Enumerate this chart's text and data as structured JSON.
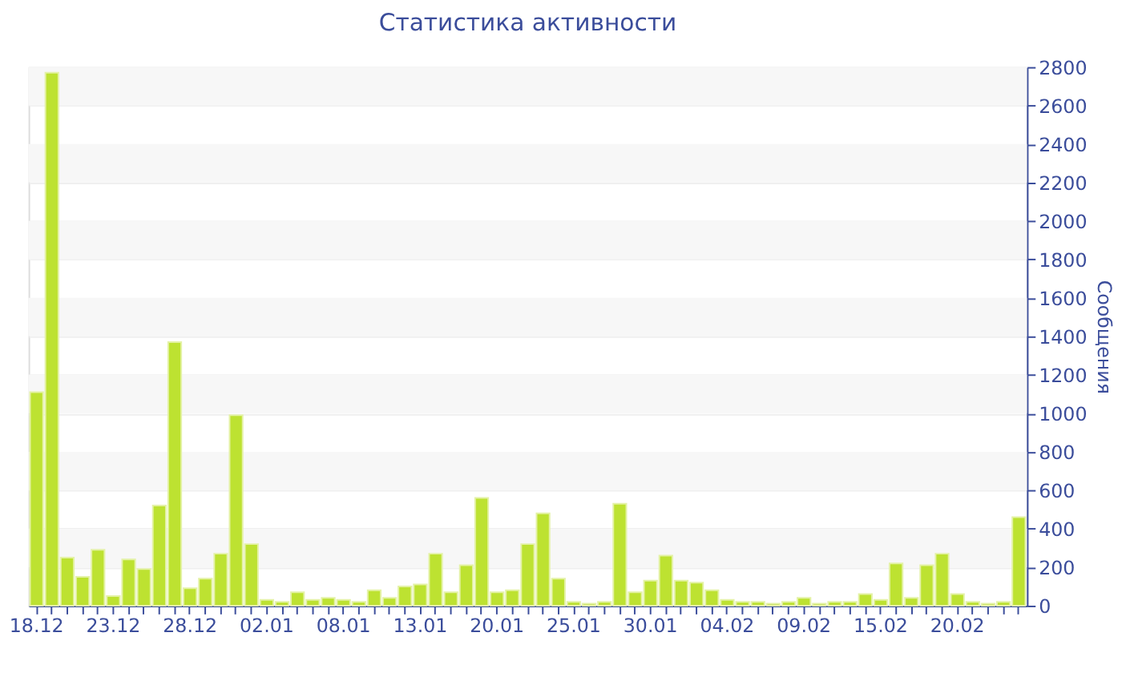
{
  "chart_data": {
    "type": "bar",
    "title": "Статистика активности",
    "ylabel": "Сообщения",
    "categories": [
      "18.12",
      null,
      null,
      null,
      null,
      "23.12",
      null,
      null,
      null,
      null,
      "28.12",
      null,
      null,
      null,
      null,
      "02.01",
      null,
      null,
      null,
      null,
      "08.01",
      null,
      null,
      null,
      null,
      "13.01",
      null,
      null,
      null,
      null,
      "20.01",
      null,
      null,
      null,
      null,
      "25.01",
      null,
      null,
      null,
      null,
      "30.01",
      null,
      null,
      null,
      null,
      "04.02",
      null,
      null,
      null,
      null,
      "09.02",
      null,
      null,
      null,
      null,
      "15.02",
      null,
      null,
      null,
      null,
      "20.02",
      null,
      null,
      null,
      null
    ],
    "values": [
      1110,
      2770,
      250,
      150,
      290,
      50,
      240,
      190,
      520,
      1370,
      90,
      140,
      270,
      990,
      320,
      30,
      20,
      70,
      30,
      40,
      30,
      20,
      80,
      40,
      100,
      110,
      270,
      70,
      210,
      560,
      70,
      80,
      320,
      480,
      140,
      20,
      10,
      20,
      530,
      70,
      130,
      260,
      130,
      120,
      80,
      30,
      20,
      20,
      10,
      20,
      40,
      10,
      20,
      20,
      60,
      30,
      220,
      40,
      210,
      270,
      60,
      20,
      10,
      20,
      460
    ],
    "color": "#bde231",
    "ylim": [
      0,
      2800
    ],
    "yticks": [
      0,
      200,
      400,
      600,
      800,
      1000,
      1200,
      1400,
      1600,
      1800,
      2000,
      2200,
      2400,
      2600,
      2800
    ],
    "grid": "y"
  }
}
